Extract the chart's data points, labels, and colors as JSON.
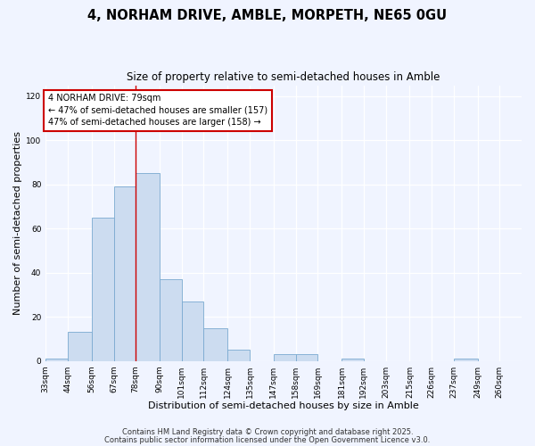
{
  "title": "4, NORHAM DRIVE, AMBLE, MORPETH, NE65 0GU",
  "subtitle": "Size of property relative to semi-detached houses in Amble",
  "xlabel": "Distribution of semi-detached houses by size in Amble",
  "ylabel": "Number of semi-detached properties",
  "bar_color": "#ccdcf0",
  "bar_edge_color": "#7aaad0",
  "background_color": "#f0f4ff",
  "bin_labels": [
    "33sqm",
    "44sqm",
    "56sqm",
    "67sqm",
    "78sqm",
    "90sqm",
    "101sqm",
    "112sqm",
    "124sqm",
    "135sqm",
    "147sqm",
    "158sqm",
    "169sqm",
    "181sqm",
    "192sqm",
    "203sqm",
    "215sqm",
    "226sqm",
    "237sqm",
    "249sqm",
    "260sqm"
  ],
  "bin_edges": [
    33,
    44,
    56,
    67,
    78,
    90,
    101,
    112,
    124,
    135,
    147,
    158,
    169,
    181,
    192,
    203,
    215,
    226,
    237,
    249,
    260
  ],
  "bar_heights": [
    1,
    13,
    65,
    79,
    85,
    37,
    27,
    15,
    5,
    0,
    3,
    3,
    0,
    1,
    0,
    0,
    0,
    0,
    1,
    0,
    0
  ],
  "ylim": [
    0,
    125
  ],
  "yticks": [
    0,
    20,
    40,
    60,
    80,
    100,
    120
  ],
  "marker_value": 78,
  "marker_label": "4 NORHAM DRIVE: 79sqm",
  "marker_line_color": "#cc0000",
  "annotation_line1": "← 47% of semi-detached houses are smaller (157)",
  "annotation_line2": "47% of semi-detached houses are larger (158) →",
  "footer1": "Contains HM Land Registry data © Crown copyright and database right 2025.",
  "footer2": "Contains public sector information licensed under the Open Government Licence v3.0.",
  "title_fontsize": 10.5,
  "subtitle_fontsize": 8.5,
  "axis_label_fontsize": 8,
  "tick_fontsize": 6.5,
  "annotation_fontsize": 7,
  "footer_fontsize": 6
}
